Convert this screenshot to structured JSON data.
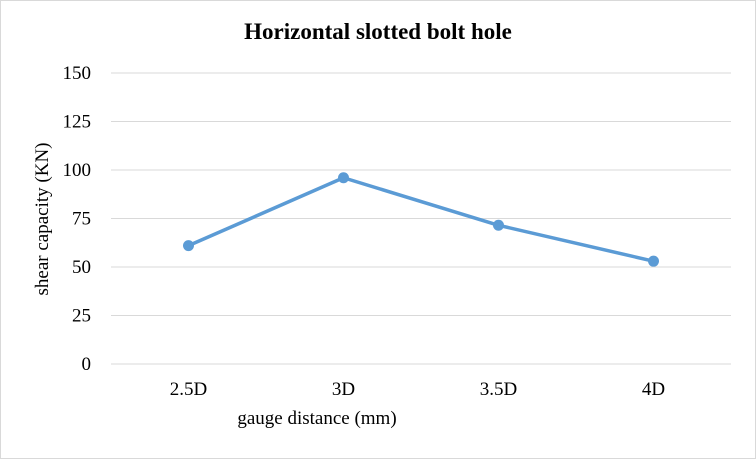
{
  "chart_data": {
    "type": "line",
    "title": "Horizontal slotted bolt hole",
    "xlabel": "gauge distance (mm)",
    "ylabel": "shear capacity (KN)",
    "categories": [
      "2.5D",
      "3D",
      "3.5D",
      "4D"
    ],
    "series": [
      {
        "values": [
          61,
          96,
          71.5,
          53
        ]
      }
    ],
    "ylim": [
      0,
      150
    ],
    "yticks": [
      0,
      25,
      50,
      75,
      100,
      125,
      150
    ],
    "grid": true,
    "legend": "none",
    "line_color": "#5b9bd5",
    "grid_color": "#d9d9d9"
  }
}
